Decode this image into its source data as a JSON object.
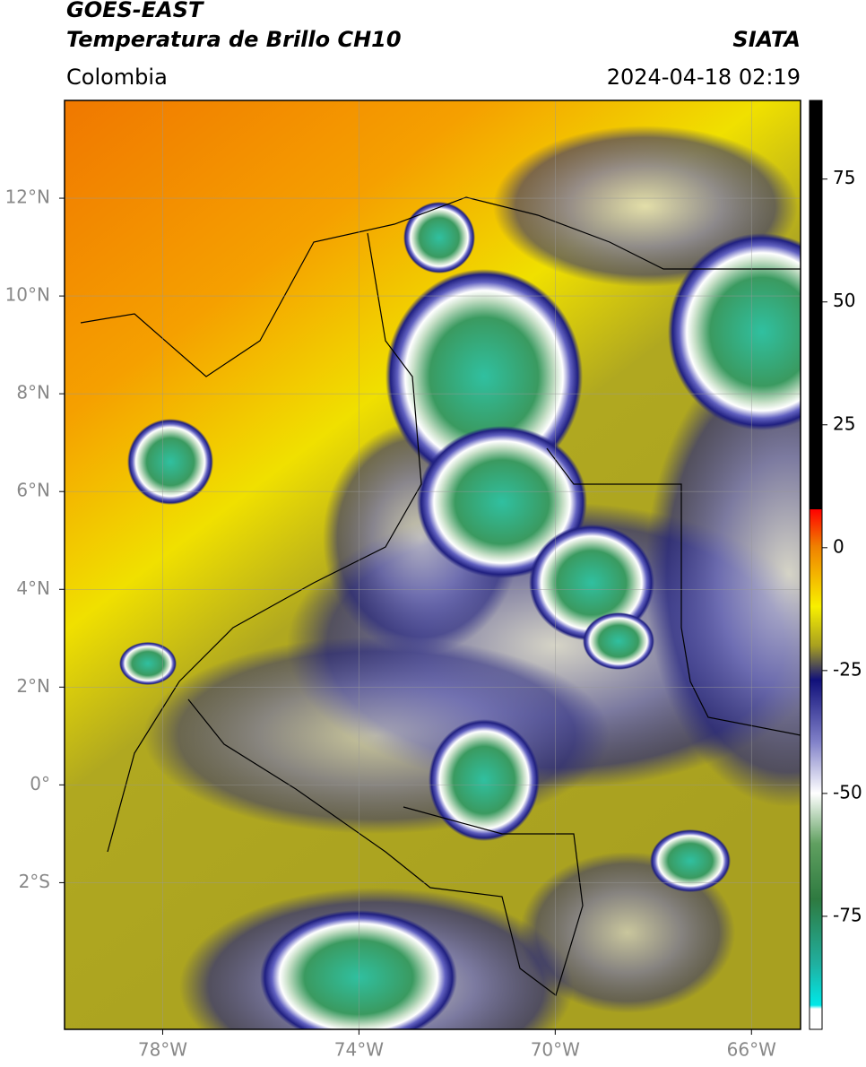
{
  "header": {
    "title": "GOES-EAST",
    "subtitle": "Temperatura de Brillo CH10",
    "region": "Colombia",
    "source": "SIATA",
    "timestamp": "2024-04-18 02:19"
  },
  "map": {
    "xlim": [
      -80,
      -65
    ],
    "ylim": [
      -5,
      14
    ],
    "xticks": [
      {
        "value": -78,
        "label": "78°W"
      },
      {
        "value": -74,
        "label": "74°W"
      },
      {
        "value": -70,
        "label": "70°W"
      },
      {
        "value": -66,
        "label": "66°W"
      }
    ],
    "yticks": [
      {
        "value": 12,
        "label": "12°N"
      },
      {
        "value": 10,
        "label": "10°N"
      },
      {
        "value": 8,
        "label": "8°N"
      },
      {
        "value": 6,
        "label": "6°N"
      },
      {
        "value": 4,
        "label": "4°N"
      },
      {
        "value": 2,
        "label": "2°N"
      },
      {
        "value": 0,
        "label": "0°"
      },
      {
        "value": -2,
        "label": "2°S"
      }
    ],
    "grid": true
  },
  "colorbar": {
    "lim": [
      -98,
      91
    ],
    "ticks": [
      75,
      50,
      25,
      0,
      -25,
      -50,
      -75
    ]
  }
}
